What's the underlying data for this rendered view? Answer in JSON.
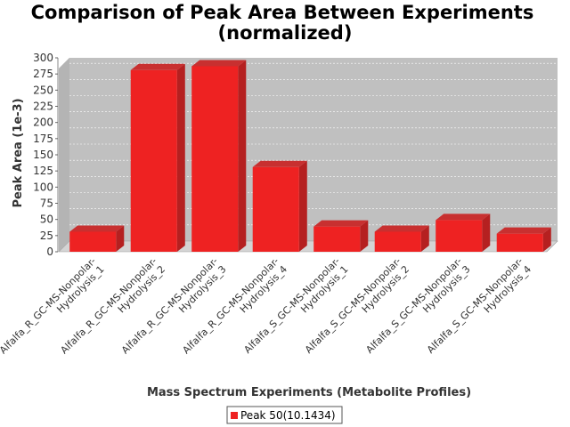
{
  "chart_data": {
    "type": "bar",
    "title_line1": "Comparison of Peak Area Between Experiments",
    "title_line2": "(normalized)",
    "xlabel": "Mass Spectrum Experiments (Metabolite Profiles)",
    "ylabel": "Peak Area (1e-3)",
    "ylim": [
      0,
      300
    ],
    "yticks": [
      0,
      25,
      50,
      75,
      100,
      125,
      150,
      175,
      200,
      225,
      250,
      275,
      300
    ],
    "grid": true,
    "legend_position": "bottom",
    "categories": [
      [
        "Alfalfa_R_GC-MS-Nonpolar-",
        "Hydrolysis_1"
      ],
      [
        "Alfalfa_R_GC-MS-Nonpolar-",
        "Hydrolysis_2"
      ],
      [
        "Alfalfa_R_GC-MS-Nonpolar-",
        "Hydrolysis_3"
      ],
      [
        "Alfalfa_R_GC-MS-Nonpolar-",
        "Hydrolysis_4"
      ],
      [
        "Alfalfa_S_GC-MS-Nonpolar-",
        "Hydrolysis_1"
      ],
      [
        "Alfalfa_S_GC-MS-Nonpolar-",
        "Hydrolysis_2"
      ],
      [
        "Alfalfa_S_GC-MS-Nonpolar-",
        "Hydrolysis_3"
      ],
      [
        "Alfalfa_S_GC-MS-Nonpolar-",
        "Hydrolysis_4"
      ]
    ],
    "series": [
      {
        "name": "Peak 50(10.1434)",
        "color": "#ee2222",
        "values": [
          31,
          281,
          287,
          131,
          39,
          31,
          49,
          28
        ]
      }
    ]
  }
}
